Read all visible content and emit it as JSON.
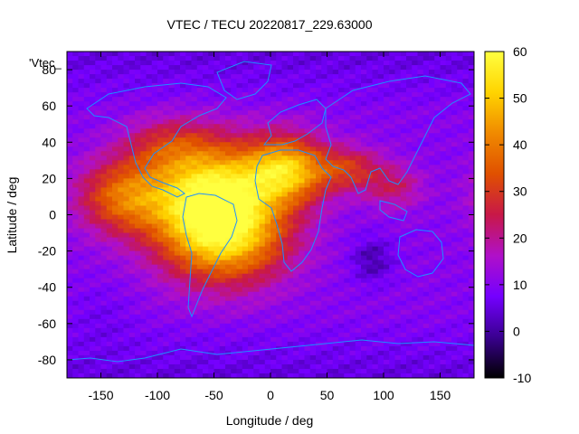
{
  "chart_data": {
    "type": "heatmap",
    "title": "VTEC / TECU 20220817_229.63000",
    "xlabel": "Longitude / deg",
    "ylabel": "Latitude / deg",
    "series_label": "'Vtec_",
    "xlim": [
      -180,
      180
    ],
    "ylim": [
      -90,
      90
    ],
    "xticks": [
      -150,
      -100,
      -50,
      0,
      50,
      100,
      150
    ],
    "yticks": [
      -80,
      -60,
      -40,
      -20,
      0,
      20,
      40,
      60,
      80
    ],
    "color_range": [
      -10,
      60
    ],
    "colorbar_ticks": [
      -10,
      0,
      10,
      20,
      30,
      40,
      50,
      60
    ],
    "grid": false,
    "colormap": [
      "#000000",
      "#3a0090",
      "#7400ff",
      "#b010c8",
      "#c81848",
      "#e05000",
      "#f08a00",
      "#ffd400",
      "#ffff40"
    ],
    "background_value": 10,
    "features": [
      {
        "name": "americas-atlantic-crest",
        "lon": -50,
        "lat": 10,
        "peak": 48,
        "spread_lon": 55,
        "spread_lat": 28
      },
      {
        "name": "south-atlantic-extension",
        "lon": -40,
        "lat": -15,
        "peak": 30,
        "spread_lon": 55,
        "spread_lat": 25
      },
      {
        "name": "africa-crest",
        "lon": 15,
        "lat": 25,
        "peak": 36,
        "spread_lon": 35,
        "spread_lat": 18
      },
      {
        "name": "eastern-pacific-band",
        "lon": -130,
        "lat": 10,
        "peak": 26,
        "spread_lon": 40,
        "spread_lat": 20
      },
      {
        "name": "north-america-lobe",
        "lon": -90,
        "lat": 38,
        "peak": 14,
        "spread_lon": 40,
        "spread_lat": 15
      },
      {
        "name": "arabia-india-band",
        "lon": 70,
        "lat": 25,
        "peak": 18,
        "spread_lon": 30,
        "spread_lat": 12
      },
      {
        "name": "asia-east-band",
        "lon": 110,
        "lat": 15,
        "peak": 12,
        "spread_lon": 25,
        "spread_lat": 12
      },
      {
        "name": "indian-ocean-low",
        "lon": 90,
        "lat": -25,
        "peak": -9,
        "spread_lon": 18,
        "spread_lat": 12
      },
      {
        "name": "south-pacific-low",
        "lon": -150,
        "lat": -55,
        "peak": -3,
        "spread_lon": 30,
        "spread_lat": 15
      }
    ]
  },
  "coastlines_label": "world coastlines"
}
